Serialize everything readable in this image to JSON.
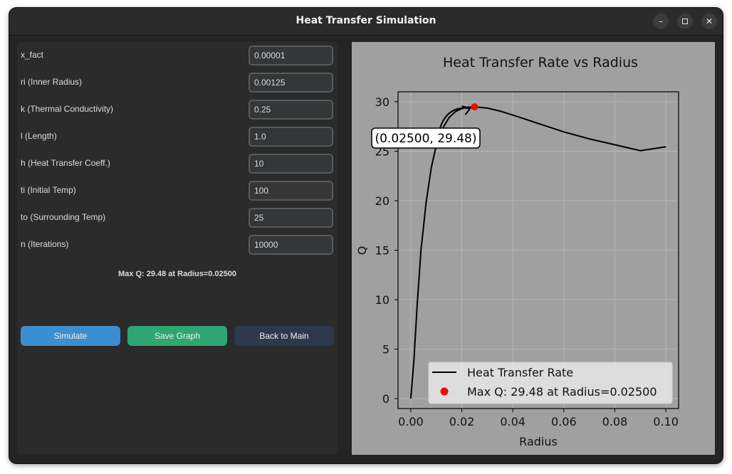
{
  "window": {
    "title": "Heat Transfer Simulation",
    "controls": {
      "minimize": "–",
      "close": "✕"
    }
  },
  "form": {
    "fields": [
      {
        "label": "x_fact",
        "value": "0.00001"
      },
      {
        "label": "ri (Inner Radius)",
        "value": "0.00125"
      },
      {
        "label": "k (Thermal Conductivity)",
        "value": "0.25"
      },
      {
        "label": "l (Length)",
        "value": "1.0"
      },
      {
        "label": "h (Heat Transfer Coeff.)",
        "value": "10"
      },
      {
        "label": "ti (Initial Temp)",
        "value": "100"
      },
      {
        "label": "to (Surrounding Temp)",
        "value": "25"
      },
      {
        "label": "n (Iterations)",
        "value": "10000"
      }
    ],
    "result_text": "Max Q: 29.48 at Radius=0.02500"
  },
  "buttons": {
    "simulate": "Simulate",
    "save_graph": "Save Graph",
    "back": "Back to Main"
  },
  "colors": {
    "simulate": "#3b8ed0",
    "save_graph": "#2fa572",
    "back": "#2b3a4e",
    "plot_bg": "#a0a0a0",
    "curve": "#000000",
    "max_point": "#ff0000"
  },
  "chart_data": {
    "type": "line",
    "title": "Heat Transfer Rate vs Radius",
    "xlabel": "Radius",
    "ylabel": "Q",
    "xlim": [
      -0.005,
      0.105
    ],
    "ylim": [
      -1,
      31
    ],
    "xticks": [
      "0.00",
      "0.02",
      "0.04",
      "0.06",
      "0.08",
      "0.10"
    ],
    "yticks": [
      "0",
      "5",
      "10",
      "15",
      "20",
      "25",
      "30"
    ],
    "grid": true,
    "legend_position": "lower-right",
    "series": [
      {
        "name": "Heat Transfer Rate",
        "x": [
          0.0,
          0.00125,
          0.0025,
          0.004,
          0.006,
          0.008,
          0.01,
          0.012,
          0.015,
          0.0175,
          0.02,
          0.0225,
          0.025,
          0.03,
          0.035,
          0.04,
          0.05,
          0.06,
          0.07,
          0.08,
          0.09,
          0.1
        ],
        "y": [
          0.0,
          4.0,
          9.5,
          15.0,
          19.8,
          23.3,
          25.6,
          27.1,
          28.4,
          29.0,
          29.3,
          29.45,
          29.48,
          29.35,
          29.05,
          28.65,
          27.8,
          26.95,
          26.25,
          25.65,
          25.05,
          25.45
        ]
      }
    ],
    "max_point": {
      "name": "Max Q: 29.48 at Radius=0.02500",
      "x": 0.025,
      "y": 29.48
    },
    "annotation": "(0.02500, 29.48)"
  }
}
